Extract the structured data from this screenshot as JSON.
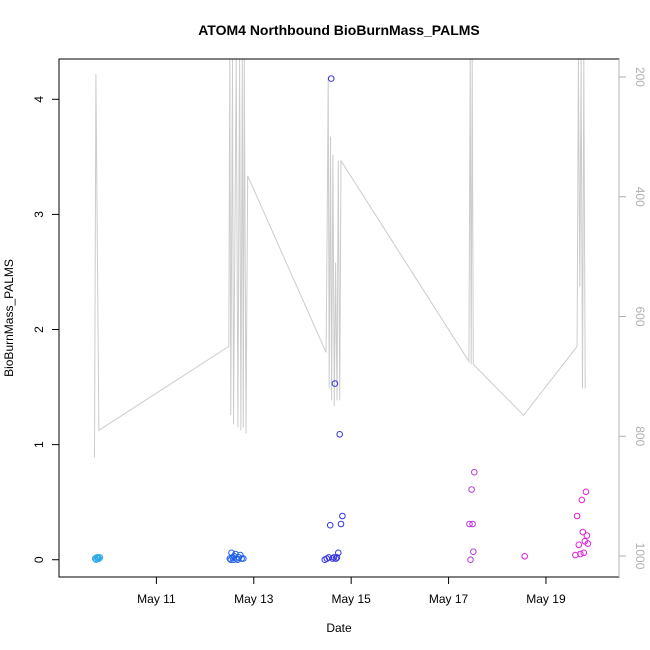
{
  "chart_data": {
    "type": "scatter",
    "title": "ATOM4 Northbound BioBurnMass_PALMS",
    "xlabel": "Date",
    "ylabel": "BioBurnMass_PALMS",
    "xlim": [
      "2016-05-09 00:00",
      "2016-05-20 12:00"
    ],
    "ylim": [
      -0.15,
      4.35
    ],
    "y2lim": [
      1035,
      170
    ],
    "x_ticks": [
      {
        "label": "May 11",
        "x": "2016-05-11"
      },
      {
        "label": "May 13",
        "x": "2016-05-13"
      },
      {
        "label": "May 15",
        "x": "2016-05-15"
      },
      {
        "label": "May 17",
        "x": "2016-05-17"
      },
      {
        "label": "May 19",
        "x": "2016-05-19"
      }
    ],
    "y_ticks": [
      0,
      1,
      2,
      3,
      4
    ],
    "y2_ticks": [
      200,
      400,
      600,
      800,
      1000
    ],
    "grid": false,
    "pressure_line_color": "#cccccc",
    "series": [
      {
        "color": "#29a8e8",
        "points": [
          {
            "x": "2016-05-09 17:50",
            "y": 0.01
          },
          {
            "x": "2016-05-09 18:20",
            "y": 0.0
          },
          {
            "x": "2016-05-09 18:40",
            "y": 0.02
          },
          {
            "x": "2016-05-09 19:00",
            "y": 0.01
          },
          {
            "x": "2016-05-09 19:20",
            "y": 0.02
          },
          {
            "x": "2016-05-09 19:40",
            "y": 0.01
          },
          {
            "x": "2016-05-09 20:10",
            "y": 0.02
          }
        ]
      },
      {
        "color": "#1f5fe8",
        "points": [
          {
            "x": "2016-05-12 12:10",
            "y": 0.01
          },
          {
            "x": "2016-05-12 12:40",
            "y": 0.0
          },
          {
            "x": "2016-05-12 13:00",
            "y": 0.06
          },
          {
            "x": "2016-05-12 13:30",
            "y": 0.02
          },
          {
            "x": "2016-05-12 14:00",
            "y": 0.0
          },
          {
            "x": "2016-05-12 14:20",
            "y": 0.03
          },
          {
            "x": "2016-05-12 15:00",
            "y": 0.05
          },
          {
            "x": "2016-05-12 15:30",
            "y": 0.01
          },
          {
            "x": "2016-05-12 16:00",
            "y": 0.0
          },
          {
            "x": "2016-05-12 16:40",
            "y": 0.02
          },
          {
            "x": "2016-05-12 17:20",
            "y": 0.04
          },
          {
            "x": "2016-05-12 18:00",
            "y": 0.01
          },
          {
            "x": "2016-05-12 18:50",
            "y": 0.01
          }
        ]
      },
      {
        "color": "#3333e0",
        "points": [
          {
            "x": "2016-05-14 11:00",
            "y": 0.0
          },
          {
            "x": "2016-05-14 12:00",
            "y": 0.01
          },
          {
            "x": "2016-05-14 13:00",
            "y": 0.02
          },
          {
            "x": "2016-05-14 13:40",
            "y": 0.3
          },
          {
            "x": "2016-05-14 14:10",
            "y": 4.18
          },
          {
            "x": "2016-05-14 14:50",
            "y": 0.01
          },
          {
            "x": "2016-05-14 15:30",
            "y": 0.02
          },
          {
            "x": "2016-05-14 16:00",
            "y": 1.53
          },
          {
            "x": "2016-05-14 16:30",
            "y": 0.01
          },
          {
            "x": "2016-05-14 17:00",
            "y": 0.02
          },
          {
            "x": "2016-05-14 17:40",
            "y": 0.06
          },
          {
            "x": "2016-05-14 18:20",
            "y": 1.09
          },
          {
            "x": "2016-05-14 19:00",
            "y": 0.31
          },
          {
            "x": "2016-05-14 19:40",
            "y": 0.38
          }
        ]
      },
      {
        "color": "#b83ad8",
        "points": [
          {
            "x": "2016-05-17 10:20",
            "y": 0.31
          },
          {
            "x": "2016-05-17 10:50",
            "y": 0.0
          },
          {
            "x": "2016-05-17 11:20",
            "y": 0.61
          },
          {
            "x": "2016-05-17 11:50",
            "y": 0.31
          },
          {
            "x": "2016-05-17 12:10",
            "y": 0.07
          },
          {
            "x": "2016-05-17 12:40",
            "y": 0.76
          }
        ]
      },
      {
        "color": "#e020d8",
        "points": [
          {
            "x": "2016-05-18 13:30",
            "y": 0.03
          },
          {
            "x": "2016-05-19 14:30",
            "y": 0.04
          },
          {
            "x": "2016-05-19 15:20",
            "y": 0.38
          },
          {
            "x": "2016-05-19 16:10",
            "y": 0.13
          },
          {
            "x": "2016-05-19 17:00",
            "y": 0.05
          },
          {
            "x": "2016-05-19 17:40",
            "y": 0.52
          },
          {
            "x": "2016-05-19 18:10",
            "y": 0.24
          },
          {
            "x": "2016-05-19 18:40",
            "y": 0.06
          },
          {
            "x": "2016-05-19 19:10",
            "y": 0.16
          },
          {
            "x": "2016-05-19 19:40",
            "y": 0.59
          },
          {
            "x": "2016-05-19 20:10",
            "y": 0.21
          },
          {
            "x": "2016-05-19 20:40",
            "y": 0.14
          }
        ]
      }
    ],
    "pressure_line": [
      [
        "2016-05-09 17:30",
        835
      ],
      [
        "2016-05-09 18:10",
        195
      ],
      [
        "2016-05-09 19:40",
        790
      ],
      [
        "2016-05-12 11:40",
        650
      ],
      [
        "2016-05-12 12:10",
        170
      ],
      [
        "2016-05-12 12:40",
        765
      ],
      [
        "2016-05-12 13:30",
        170
      ],
      [
        "2016-05-12 14:00",
        780
      ],
      [
        "2016-05-12 15:20",
        170
      ],
      [
        "2016-05-12 16:10",
        785
      ],
      [
        "2016-05-12 17:00",
        170
      ],
      [
        "2016-05-12 17:40",
        790
      ],
      [
        "2016-05-12 18:20",
        170
      ],
      [
        "2016-05-12 18:50",
        785
      ],
      [
        "2016-05-12 19:20",
        170
      ],
      [
        "2016-05-12 20:10",
        795
      ],
      [
        "2016-05-12 21:00",
        365
      ],
      [
        "2016-05-14 11:40",
        660
      ],
      [
        "2016-05-14 12:10",
        440
      ],
      [
        "2016-05-14 12:40",
        200
      ],
      [
        "2016-05-14 13:10",
        720
      ],
      [
        "2016-05-14 13:50",
        300
      ],
      [
        "2016-05-14 14:20",
        740
      ],
      [
        "2016-05-14 15:00",
        330
      ],
      [
        "2016-05-14 15:40",
        750
      ],
      [
        "2016-05-14 16:20",
        510
      ],
      [
        "2016-05-14 17:00",
        740
      ],
      [
        "2016-05-14 17:40",
        340
      ],
      [
        "2016-05-14 18:20",
        740
      ],
      [
        "2016-05-14 19:00",
        340
      ],
      [
        "2016-05-17 10:00",
        675
      ],
      [
        "2016-05-17 10:40",
        170
      ],
      [
        "2016-05-17 11:10",
        680
      ],
      [
        "2016-05-17 11:40",
        170
      ],
      [
        "2016-05-17 12:10",
        680
      ],
      [
        "2016-05-18 13:00",
        765
      ],
      [
        "2016-05-19 15:20",
        650
      ],
      [
        "2016-05-19 16:00",
        170
      ],
      [
        "2016-05-19 16:40",
        550
      ],
      [
        "2016-05-19 17:20",
        170
      ],
      [
        "2016-05-19 18:00",
        720
      ],
      [
        "2016-05-19 18:40",
        170
      ],
      [
        "2016-05-19 19:20",
        720
      ]
    ]
  }
}
